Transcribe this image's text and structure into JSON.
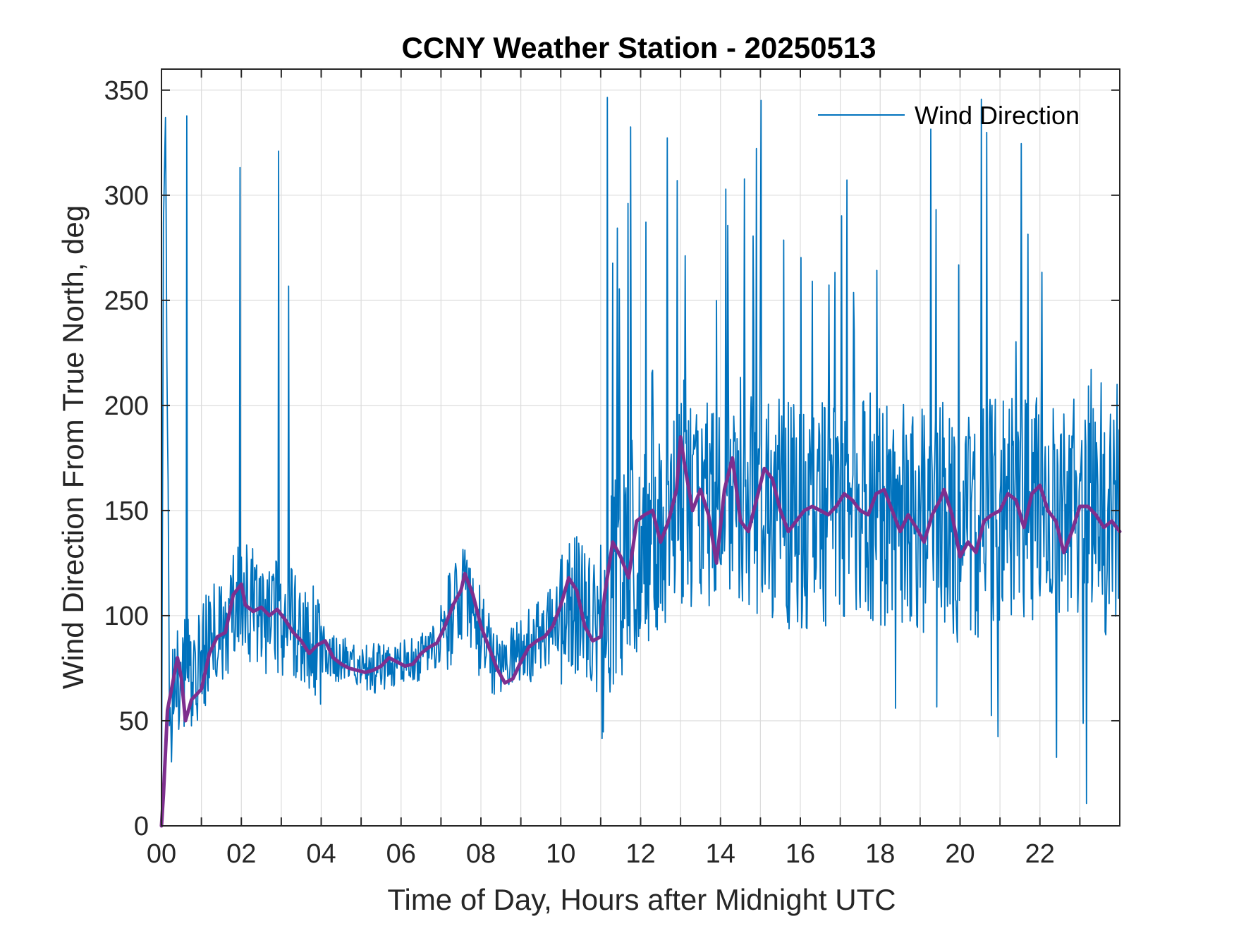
{
  "chart_data": {
    "type": "line",
    "title": "CCNY Weather Station - 20250513",
    "xlabel": "Time of Day, Hours after Midnight UTC",
    "ylabel": "Wind Direction From True North, deg",
    "xlim": [
      0,
      24
    ],
    "ylim": [
      0,
      360
    ],
    "xticks": [
      0,
      2,
      4,
      6,
      8,
      10,
      12,
      14,
      16,
      18,
      20,
      22
    ],
    "xtick_labels": [
      "00",
      "02",
      "04",
      "06",
      "08",
      "10",
      "12",
      "14",
      "16",
      "18",
      "20",
      "22"
    ],
    "yticks": [
      0,
      50,
      100,
      150,
      200,
      250,
      300,
      350
    ],
    "ytick_labels": [
      "0",
      "50",
      "100",
      "150",
      "200",
      "250",
      "300",
      "350"
    ],
    "grid": true,
    "legend": {
      "position": "top-right",
      "entries": [
        "Wind Direction"
      ]
    },
    "series": [
      {
        "name": "Wind Direction",
        "color": "#0072BD",
        "style": "thin noisy line",
        "x": [
          0,
          0.05,
          0.1,
          0.2,
          0.5,
          1.0,
          1.5,
          2.0,
          2.5,
          3.0,
          3.5,
          4.0,
          4.5,
          5.0,
          5.5,
          6.0,
          6.5,
          7.0,
          7.5,
          8.0,
          8.5,
          9.0,
          9.5,
          10.0,
          10.5,
          11.0,
          11.5,
          12.0,
          12.5,
          13.0,
          13.5,
          14.0,
          14.5,
          15.0,
          15.5,
          16.0,
          16.5,
          17.0,
          17.5,
          18.0,
          18.5,
          19.0,
          19.5,
          20.0,
          20.5,
          21.0,
          21.5,
          22.0,
          22.5,
          23.0,
          23.5,
          24.0
        ],
        "values": [
          0,
          287,
          337,
          55,
          70,
          80,
          95,
          110,
          100,
          100,
          90,
          85,
          78,
          75,
          75,
          78,
          80,
          88,
          110,
          95,
          70,
          82,
          90,
          100,
          110,
          90,
          125,
          140,
          140,
          160,
          150,
          150,
          160,
          155,
          150,
          145,
          150,
          150,
          155,
          150,
          150,
          145,
          150,
          140,
          145,
          150,
          155,
          150,
          145,
          150,
          145,
          140
        ]
      },
      {
        "name": "",
        "color": "#7E2F8E",
        "style": "thick smoothed line",
        "x": [
          0,
          0.05,
          0.15,
          0.25,
          0.4,
          0.5,
          0.6,
          0.75,
          1.0,
          1.2,
          1.4,
          1.6,
          1.8,
          2.0,
          2.1,
          2.3,
          2.5,
          2.7,
          2.9,
          3.1,
          3.3,
          3.5,
          3.7,
          3.9,
          4.1,
          4.3,
          4.5,
          4.7,
          4.9,
          5.1,
          5.3,
          5.5,
          5.7,
          5.9,
          6.1,
          6.3,
          6.5,
          6.7,
          6.9,
          7.1,
          7.3,
          7.5,
          7.6,
          7.8,
          8.0,
          8.2,
          8.4,
          8.6,
          8.8,
          9.0,
          9.2,
          9.4,
          9.6,
          9.8,
          10.0,
          10.2,
          10.4,
          10.6,
          10.8,
          11.0,
          11.1,
          11.3,
          11.5,
          11.7,
          11.9,
          12.1,
          12.3,
          12.5,
          12.7,
          12.9,
          13.0,
          13.1,
          13.3,
          13.5,
          13.7,
          13.9,
          14.1,
          14.3,
          14.5,
          14.7,
          14.9,
          15.1,
          15.3,
          15.5,
          15.7,
          15.9,
          16.1,
          16.3,
          16.5,
          16.7,
          16.9,
          17.1,
          17.3,
          17.5,
          17.7,
          17.9,
          18.1,
          18.3,
          18.5,
          18.7,
          18.9,
          19.1,
          19.3,
          19.5,
          19.6,
          19.8,
          20.0,
          20.2,
          20.4,
          20.6,
          20.8,
          21.0,
          21.2,
          21.4,
          21.6,
          21.8,
          22.0,
          22.2,
          22.4,
          22.6,
          22.8,
          23.0,
          23.2,
          23.4,
          23.6,
          23.8,
          24.0
        ],
        "values": [
          0,
          15,
          55,
          65,
          80,
          70,
          50,
          60,
          65,
          82,
          90,
          92,
          110,
          115,
          105,
          102,
          104,
          100,
          103,
          98,
          92,
          88,
          82,
          86,
          88,
          80,
          77,
          75,
          74,
          73,
          74,
          76,
          80,
          78,
          76,
          77,
          82,
          85,
          87,
          95,
          105,
          112,
          120,
          110,
          95,
          85,
          75,
          68,
          70,
          78,
          85,
          88,
          90,
          95,
          105,
          118,
          112,
          95,
          88,
          90,
          110,
          135,
          128,
          118,
          145,
          148,
          150,
          135,
          145,
          160,
          185,
          172,
          150,
          160,
          148,
          125,
          160,
          175,
          145,
          140,
          155,
          170,
          165,
          150,
          140,
          145,
          150,
          152,
          150,
          148,
          152,
          158,
          155,
          150,
          148,
          158,
          160,
          150,
          140,
          148,
          142,
          135,
          148,
          155,
          160,
          148,
          128,
          135,
          130,
          145,
          148,
          150,
          158,
          155,
          142,
          158,
          162,
          150,
          145,
          130,
          140,
          152,
          152,
          148,
          142,
          145,
          140
        ]
      }
    ]
  }
}
